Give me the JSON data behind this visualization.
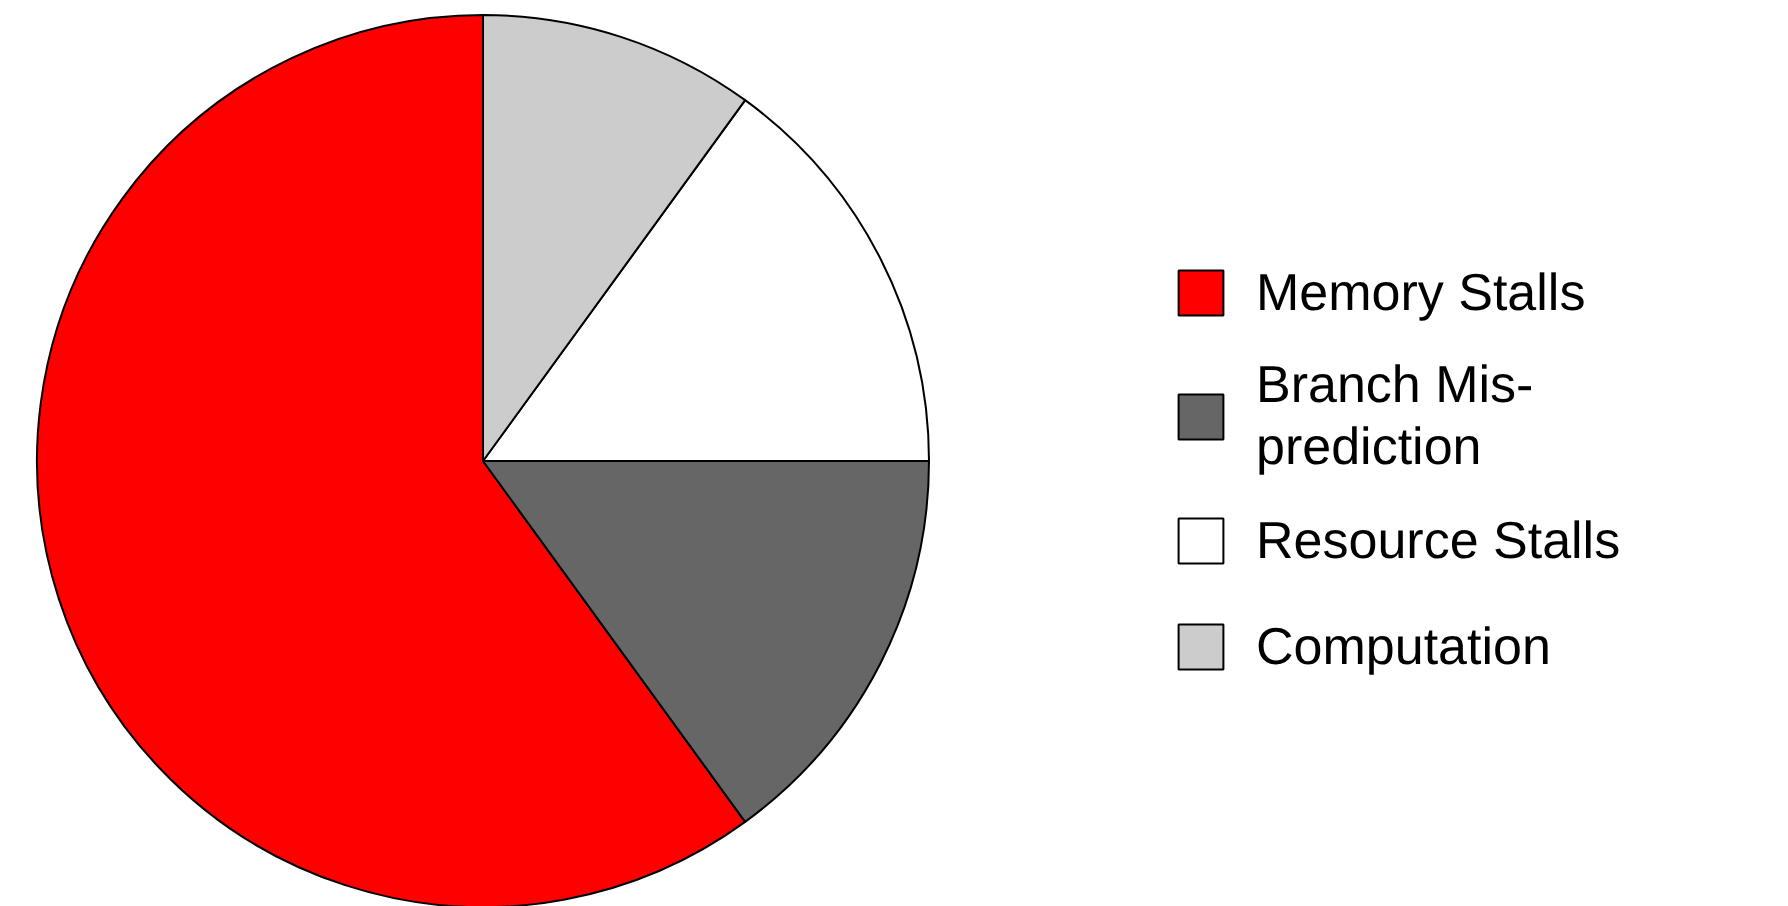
{
  "chart_data": {
    "type": "pie",
    "categories": [
      "Memory Stalls",
      "Branch Mis-prediction",
      "Resource Stalls",
      "Computation"
    ],
    "values": [
      60,
      15,
      15,
      10
    ],
    "colors": [
      "#ff0000",
      "#666666",
      "#ffffff",
      "#cccccc"
    ],
    "legend": "right"
  }
}
